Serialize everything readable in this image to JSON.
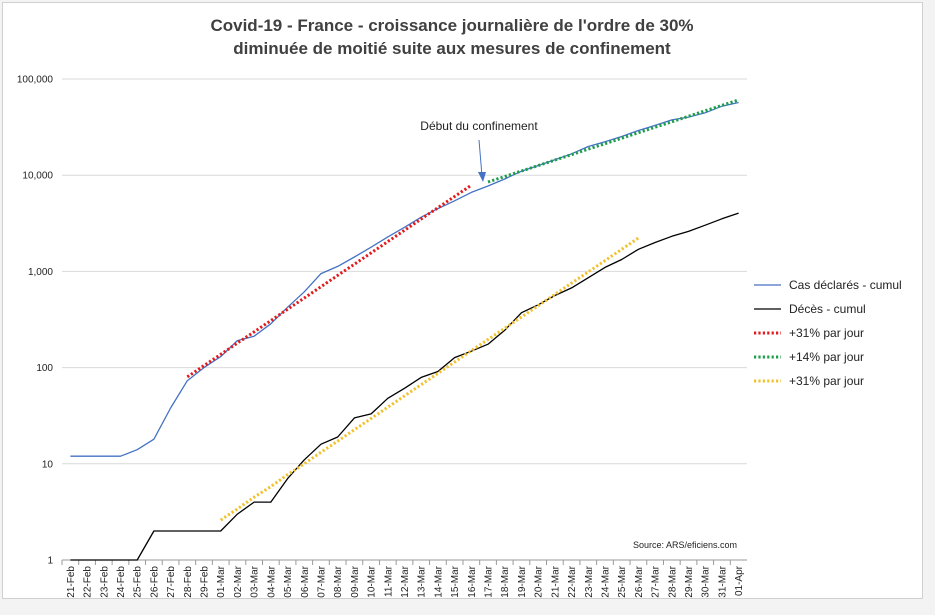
{
  "chart_data": {
    "type": "line",
    "title": "Covid-19 - France - croissance journalière de l'ordre de 30%",
    "subtitle": "diminuée de moitié suite aux mesures de confinement",
    "xlabel": "",
    "ylabel": "",
    "yscale": "log",
    "ylim": [
      1,
      100000
    ],
    "yticks": [
      "1",
      "10",
      "100",
      "1,000",
      "10,000",
      "100,000"
    ],
    "grid": "horizontal",
    "legend_position": "right",
    "categories": [
      "21-Feb",
      "22-Feb",
      "23-Feb",
      "24-Feb",
      "25-Feb",
      "26-Feb",
      "27-Feb",
      "28-Feb",
      "29-Feb",
      "01-Mar",
      "02-Mar",
      "03-Mar",
      "04-Mar",
      "05-Mar",
      "06-Mar",
      "07-Mar",
      "08-Mar",
      "09-Mar",
      "10-Mar",
      "11-Mar",
      "12-Mar",
      "13-Mar",
      "14-Mar",
      "15-Mar",
      "16-Mar",
      "17-Mar",
      "18-Mar",
      "19-Mar",
      "20-Mar",
      "21-Mar",
      "22-Mar",
      "23-Mar",
      "24-Mar",
      "25-Mar",
      "26-Mar",
      "27-Mar",
      "28-Mar",
      "29-Mar",
      "30-Mar",
      "31-Mar",
      "01-Apr"
    ],
    "series": [
      {
        "name": "Cas déclarés - cumul",
        "color": "#4472c4",
        "style": "solid",
        "values": [
          12,
          12,
          12,
          12,
          14,
          18,
          38,
          73,
          100,
          130,
          191,
          212,
          285,
          423,
          613,
          949,
          1126,
          1412,
          1784,
          2281,
          2876,
          3661,
          4499,
          5423,
          6633,
          7730,
          9134,
          10995,
          12612,
          14459,
          16689,
          19856,
          22302,
          25233,
          29155,
          32964,
          37575,
          40174,
          44550,
          52128,
          56989
        ]
      },
      {
        "name": "Décès - cumul",
        "color": "#000000",
        "style": "solid",
        "values": [
          1,
          1,
          1,
          1,
          1,
          2,
          2,
          2,
          2,
          2,
          3,
          4,
          4,
          7,
          11,
          16,
          19,
          30,
          33,
          48,
          61,
          79,
          91,
          127,
          148,
          175,
          244,
          372,
          450,
          562,
          674,
          860,
          1100,
          1331,
          1696,
          1995,
          2314,
          2606,
          3024,
          3523,
          4032
        ]
      },
      {
        "name": "+31% par jour",
        "color": "#e31a1c",
        "style": "dotted",
        "values": [
          null,
          null,
          null,
          null,
          null,
          null,
          null,
          80,
          105,
          137,
          180,
          235,
          308,
          404,
          529,
          693,
          908,
          1189,
          1558,
          2041,
          2674,
          3503,
          4589,
          6011,
          7875,
          null,
          null,
          null,
          null,
          null,
          null,
          null,
          null,
          null,
          null,
          null,
          null,
          null,
          null,
          null,
          null
        ]
      },
      {
        "name": "+14% par jour",
        "color": "#1e9e4a",
        "style": "dotted",
        "values": [
          null,
          null,
          null,
          null,
          null,
          null,
          null,
          null,
          null,
          null,
          null,
          null,
          null,
          null,
          null,
          null,
          null,
          null,
          null,
          null,
          null,
          null,
          null,
          null,
          null,
          8500,
          9690,
          11047,
          12593,
          14356,
          16366,
          18657,
          21269,
          24247,
          27641,
          31511,
          35923,
          40952,
          46685,
          53221,
          60672
        ]
      },
      {
        "name": "+31% par jour",
        "color": "#f2c12e",
        "style": "dotted",
        "values": [
          null,
          null,
          null,
          null,
          null,
          null,
          null,
          null,
          null,
          2.6,
          3.4,
          4.5,
          5.8,
          7.7,
          10.0,
          13.2,
          17.2,
          22.6,
          29.6,
          38.8,
          50.8,
          66.5,
          87.1,
          114,
          150,
          196,
          257,
          336,
          440,
          577,
          755,
          989,
          1296,
          1698,
          2224,
          null,
          null,
          null,
          null,
          null,
          null
        ]
      }
    ],
    "annotation": "Début du confinement",
    "source": "Source: ARS/eficiens.com"
  }
}
